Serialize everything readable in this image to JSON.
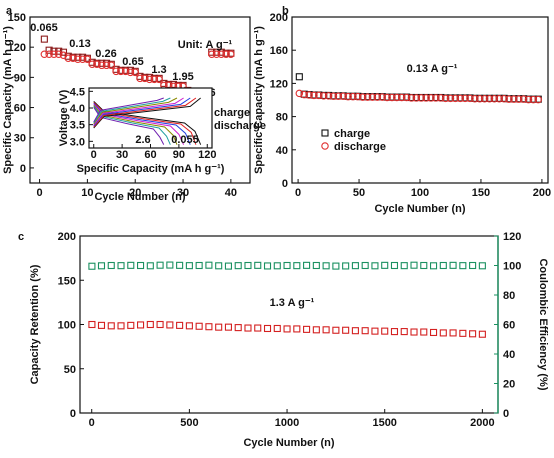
{
  "chart_data": [
    {
      "type": "scatter",
      "panel_label": "a",
      "xlabel": "Cycle Number (n)",
      "ylabel": "Specific Capacity (mA h g⁻¹)",
      "xlim": [
        -2,
        44
      ],
      "xticks": [
        0,
        10,
        20,
        30,
        40
      ],
      "ylim": [
        -15,
        150
      ],
      "yticks": [
        0,
        30,
        60,
        90,
        120,
        150
      ],
      "legend": "center right",
      "annotations": [
        "0.065",
        "0.13",
        "0.26",
        "0.65",
        "1.3",
        "1.95",
        "2.6",
        "Unit: A g⁻¹"
      ],
      "x": [
        1,
        2,
        3,
        4,
        5,
        6,
        7,
        8,
        9,
        10,
        11,
        12,
        13,
        14,
        15,
        16,
        17,
        18,
        19,
        20,
        21,
        22,
        23,
        24,
        25,
        26,
        27,
        28,
        29,
        30,
        31,
        32,
        33,
        34,
        35,
        36,
        37,
        38,
        39,
        40
      ],
      "series": [
        {
          "name": "charge",
          "color": "#8b1a1a",
          "marker": "square",
          "values": [
            128,
            117,
            116,
            116,
            115,
            111,
            110,
            110,
            110,
            109,
            105,
            104,
            104,
            104,
            103,
            98,
            97,
            97,
            97,
            96,
            91,
            90,
            90,
            89,
            89,
            84,
            83,
            83,
            82,
            82,
            77,
            76,
            76,
            75,
            75,
            115,
            115,
            115,
            114,
            114
          ]
        },
        {
          "name": "discharge",
          "color": "#e03030",
          "marker": "circle",
          "values": [
            113,
            113,
            113,
            113,
            112,
            109,
            109,
            108,
            108,
            108,
            103,
            103,
            102,
            102,
            102,
            96,
            96,
            96,
            95,
            95,
            89,
            89,
            88,
            88,
            88,
            82,
            82,
            81,
            81,
            81,
            75,
            75,
            74,
            74,
            74,
            113,
            113,
            113,
            113,
            113
          ]
        }
      ]
    },
    {
      "type": "line",
      "xlabel": "Specific Capacity (mA h g⁻¹)",
      "ylabel": "Voltage (V)",
      "xlim": [
        -5,
        125
      ],
      "xticks": [
        0,
        30,
        60,
        90,
        120
      ],
      "ylim": [
        2.8,
        4.6
      ],
      "yticks": [
        {
          "value": 3,
          "label": "3.0"
        },
        3.5,
        {
          "value": 4,
          "label": "4.0"
        },
        4.5
      ],
      "annotations": [
        "2.6",
        "0.055"
      ],
      "series": [
        {
          "color": "#111111",
          "x": [
            0,
            11,
            57,
            96,
            107,
            113
          ],
          "values": [
            4.2,
            3.9,
            3.7,
            3.55,
            3.3,
            2.9
          ]
        },
        {
          "color": "#e02020",
          "x": [
            0,
            11,
            54,
            92,
            103,
            108
          ],
          "values": [
            4.17,
            3.87,
            3.67,
            3.52,
            3.27,
            2.9
          ]
        },
        {
          "color": "#2040e0",
          "x": [
            0,
            10,
            51,
            87,
            97,
            102
          ],
          "values": [
            4.14,
            3.84,
            3.64,
            3.49,
            3.24,
            2.9
          ]
        },
        {
          "color": "#d020d0",
          "x": [
            0,
            10,
            48,
            81,
            90,
            95
          ],
          "values": [
            4.11,
            3.81,
            3.61,
            3.46,
            3.21,
            2.9
          ]
        },
        {
          "color": "#8a8a00",
          "x": [
            0,
            9,
            44,
            75,
            84,
            88
          ],
          "values": [
            4.08,
            3.78,
            3.58,
            3.43,
            3.18,
            2.9
          ]
        },
        {
          "color": "#20a0a0",
          "x": [
            0,
            8,
            41,
            69,
            77,
            81
          ],
          "values": [
            4.05,
            3.75,
            3.55,
            3.4,
            3.15,
            2.9
          ]
        },
        {
          "color": "#7020b0",
          "x": [
            0,
            7,
            37,
            63,
            70,
            74
          ],
          "values": [
            4.02,
            3.72,
            3.52,
            3.37,
            3.12,
            2.9
          ]
        },
        {
          "color": "#111111",
          "x": [
            0,
            11,
            57,
            102,
            113
          ],
          "values": [
            3.4,
            3.75,
            3.9,
            4.05,
            4.3
          ]
        },
        {
          "color": "#e02020",
          "x": [
            0,
            11,
            54,
            97,
            108
          ],
          "values": [
            3.43,
            3.78,
            3.93,
            4.08,
            4.3
          ]
        },
        {
          "color": "#2040e0",
          "x": [
            0,
            10,
            51,
            92,
            102
          ],
          "values": [
            3.46,
            3.81,
            3.96,
            4.11,
            4.3
          ]
        },
        {
          "color": "#d020d0",
          "x": [
            0,
            10,
            48,
            86,
            95
          ],
          "values": [
            3.49,
            3.84,
            3.99,
            4.14,
            4.3
          ]
        },
        {
          "color": "#8a8a00",
          "x": [
            0,
            9,
            44,
            79,
            88
          ],
          "values": [
            3.52,
            3.87,
            4.02,
            4.17,
            4.3
          ]
        },
        {
          "color": "#20a0a0",
          "x": [
            0,
            8,
            41,
            73,
            81
          ],
          "values": [
            3.55,
            3.9,
            4.05,
            4.2,
            4.3
          ]
        },
        {
          "color": "#7020b0",
          "x": [
            0,
            7,
            37,
            67,
            74
          ],
          "values": [
            3.58,
            3.93,
            4.08,
            4.23,
            4.3
          ]
        }
      ]
    },
    {
      "type": "scatter",
      "panel_label": "b",
      "xlabel": "Cycle Number (n)",
      "ylabel": "Specific Capacity (mA h g⁻¹)",
      "xlim": [
        -5,
        205
      ],
      "xticks": [
        0,
        50,
        100,
        150,
        200
      ],
      "ylim": [
        0,
        200
      ],
      "yticks": [
        0,
        40,
        80,
        120,
        160,
        200
      ],
      "legend": "lower left",
      "annotations": [
        "0.13 A g⁻¹"
      ],
      "x": [
        1,
        5,
        9,
        13,
        17,
        21,
        25,
        29,
        33,
        37,
        41,
        45,
        49,
        53,
        57,
        61,
        65,
        69,
        73,
        77,
        81,
        85,
        89,
        93,
        97,
        101,
        105,
        109,
        113,
        117,
        121,
        125,
        129,
        133,
        137,
        141,
        145,
        149,
        153,
        157,
        161,
        165,
        169,
        173,
        177,
        181,
        185,
        189,
        193,
        197
      ],
      "series": [
        {
          "name": "charge",
          "color": "#111111",
          "marker": "square",
          "values": [
            128,
            107,
            106.5,
            106,
            106,
            105.5,
            105.5,
            105,
            105,
            105,
            104.5,
            104.5,
            104.5,
            104,
            104,
            104,
            104,
            104,
            103.5,
            103.5,
            103.5,
            103.5,
            103.5,
            103,
            103,
            103,
            103,
            103,
            103,
            103,
            102.5,
            102.5,
            102.5,
            102.5,
            102.5,
            102.5,
            102,
            102,
            102,
            102,
            102,
            102,
            102,
            101.5,
            101.5,
            101.5,
            101.5,
            101,
            101,
            101
          ]
        },
        {
          "name": "discharge",
          "color": "#e03030",
          "marker": "circle",
          "values": [
            108,
            106.5,
            106,
            105.5,
            105.5,
            105,
            105,
            104.5,
            104.5,
            104.5,
            104,
            104,
            104,
            103.5,
            103.5,
            103.5,
            103.5,
            103.5,
            103,
            103,
            103,
            103,
            103,
            102.5,
            102.5,
            102.5,
            102.5,
            102.5,
            102.5,
            102.5,
            102,
            102,
            102,
            102,
            102,
            102,
            101.5,
            101.5,
            101.5,
            101.5,
            101.5,
            101.5,
            101.5,
            101,
            101,
            101,
            101,
            100.5,
            100.5,
            100.5
          ]
        }
      ]
    },
    {
      "type": "scatter",
      "panel_label": "c",
      "xlabel": "Cycle Number (n)",
      "ylabel": "Capacity Retention (%)",
      "y2label": "Coulombic Efficiency (%)",
      "xlim": [
        -60,
        2080
      ],
      "xticks": [
        0,
        500,
        1000,
        1500,
        2000
      ],
      "ylim": [
        0,
        200
      ],
      "yticks": [
        0,
        50,
        100,
        150,
        200
      ],
      "y2lim": [
        0,
        120
      ],
      "y2ticks": [
        0,
        20,
        40,
        60,
        80,
        100,
        120
      ],
      "annotations": [
        "1.3 A g⁻¹"
      ],
      "x": [
        1,
        50,
        100,
        150,
        200,
        250,
        300,
        350,
        400,
        450,
        500,
        550,
        600,
        650,
        700,
        750,
        800,
        850,
        900,
        950,
        1000,
        1050,
        1100,
        1150,
        1200,
        1250,
        1300,
        1350,
        1400,
        1450,
        1500,
        1550,
        1600,
        1650,
        1700,
        1750,
        1800,
        1850,
        1900,
        1950,
        2000
      ],
      "series": [
        {
          "color": "#d42020",
          "marker": "square",
          "values": [
            100,
            99,
            98.5,
            98.5,
            99,
            99.5,
            100,
            100,
            99.5,
            99,
            98.5,
            98,
            97.5,
            97,
            97,
            96.5,
            96,
            96,
            95.5,
            95.5,
            95,
            95,
            94.5,
            94,
            94,
            93.5,
            93.5,
            93,
            93,
            92.5,
            92.5,
            92,
            92,
            91.5,
            91.5,
            91,
            90.5,
            90.5,
            90,
            89.5,
            89
          ]
        },
        {
          "color": "#1a9060",
          "marker": "square",
          "axis": "y2",
          "values": [
            99.5,
            99.8,
            100,
            99.9,
            100.1,
            100,
            99.8,
            100.2,
            100.3,
            100.1,
            99.9,
            100,
            100.2,
            99.8,
            99.6,
            99.9,
            100,
            100.1,
            99.7,
            99.8,
            100,
            99.9,
            100.1,
            100,
            99.8,
            99.6,
            99.7,
            99.9,
            100,
            99.8,
            100.1,
            100,
            99.9,
            100.2,
            100,
            99.8,
            100,
            100.1,
            99.9,
            100,
            99.8
          ]
        }
      ]
    }
  ]
}
